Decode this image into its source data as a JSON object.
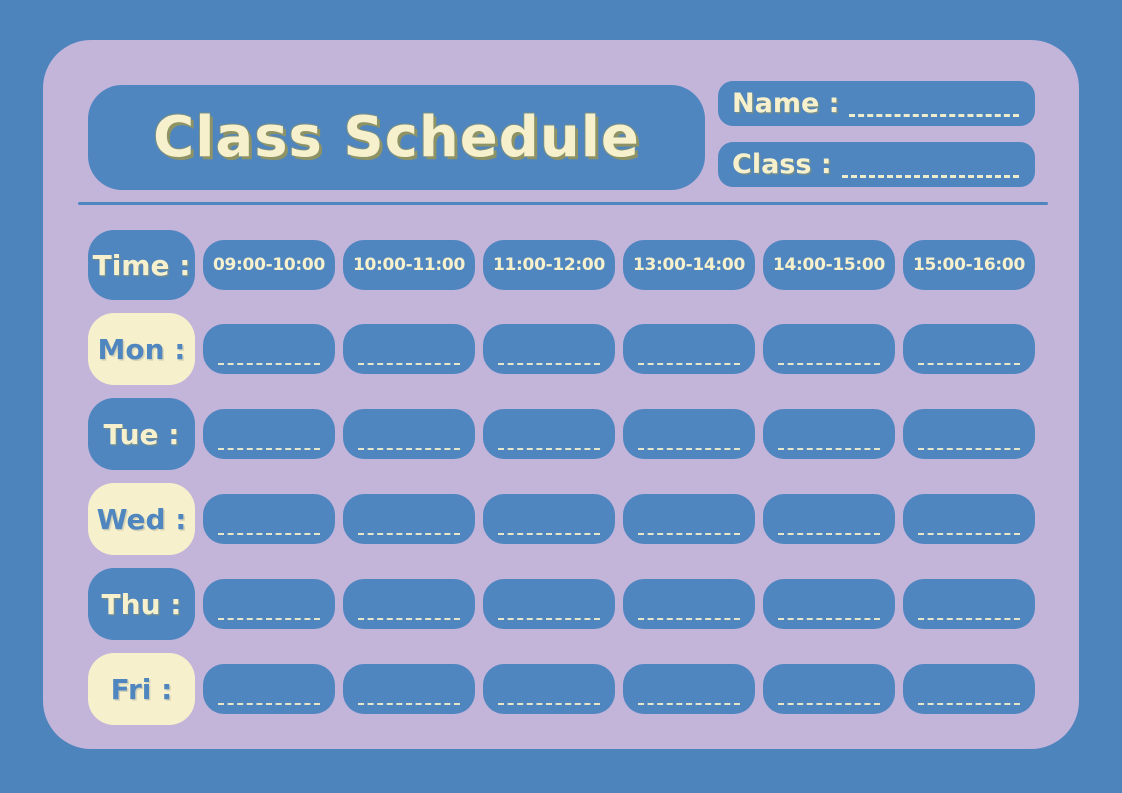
{
  "colors": {
    "background_blue": "#4d84bc",
    "panel_lavender": "#c3b4da",
    "box_blue": "#4f86bf",
    "cream": "#f6f1cc",
    "title_shadow_olive": "#8e9366"
  },
  "header": {
    "title": "Class Schedule",
    "name_label": "Name :",
    "class_label": "Class :"
  },
  "schedule": {
    "time_label": "Time :",
    "time_slots": [
      "09:00-10:00",
      "10:00-11:00",
      "11:00-12:00",
      "13:00-14:00",
      "14:00-15:00",
      "15:00-16:00"
    ],
    "days": [
      {
        "label": "Mon :",
        "style": "cream"
      },
      {
        "label": "Tue :",
        "style": "blue"
      },
      {
        "label": "Wed :",
        "style": "cream"
      },
      {
        "label": "Thu :",
        "style": "blue"
      },
      {
        "label": "Fri :",
        "style": "cream"
      }
    ],
    "cells_per_row": 6
  }
}
